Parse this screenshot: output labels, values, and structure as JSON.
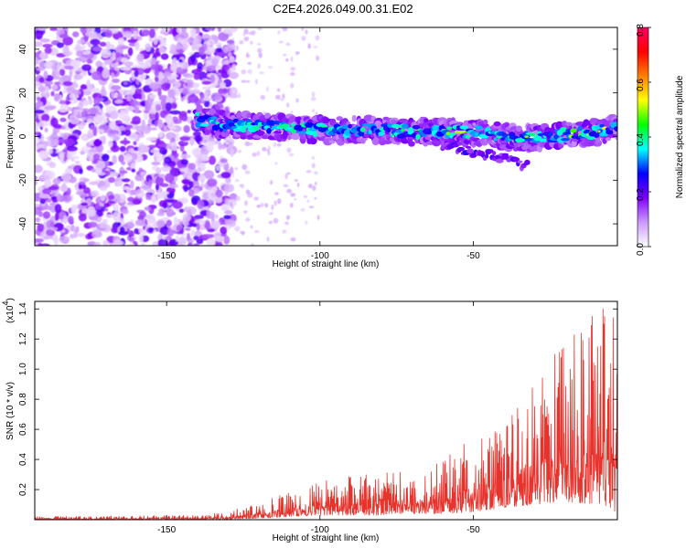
{
  "title": "C2E4.2026.049.00.31.E02",
  "chart_data": [
    {
      "type": "heatmap",
      "xlabel": "Height of straight line (km)",
      "ylabel": "Frequency (Hz)",
      "xlim": [
        -193,
        -3
      ],
      "ylim": [
        -50,
        50
      ],
      "xticks": [
        -150,
        -100,
        -50
      ],
      "yticks": [
        -40,
        -20,
        0,
        20,
        40
      ],
      "colorbar": {
        "label": "Normalized spectral amplitude",
        "range": [
          0,
          0.8
        ],
        "ticks": [
          0.0,
          0.2,
          0.4,
          0.6,
          0.8
        ],
        "colors": [
          "#ffffff",
          "#cc99ff",
          "#8000ff",
          "#0000ff",
          "#00ffff",
          "#00ff00",
          "#ffff00",
          "#ff8000",
          "#ff0000",
          "#ff0066"
        ]
      },
      "noise_region_x": [
        -193,
        -130
      ],
      "ridge": {
        "x": [
          -140,
          -130,
          -120,
          -110,
          -100,
          -90,
          -80,
          -70,
          -60,
          -50,
          -40,
          -30,
          -20,
          -10,
          -3
        ],
        "freq": [
          8,
          5,
          5,
          4,
          3,
          3,
          3,
          2,
          2,
          2,
          0,
          -1,
          1,
          2,
          4
        ],
        "peak_amplitude": [
          0.45,
          0.5,
          0.5,
          0.55,
          0.55,
          0.5,
          0.5,
          0.5,
          0.6,
          0.65,
          0.55,
          0.65,
          0.75,
          0.7,
          0.6
        ]
      },
      "tail": {
        "x": [
          -60,
          -40,
          -32
        ],
        "freq": [
          -4,
          -10,
          -14
        ]
      }
    },
    {
      "type": "line",
      "xlabel": "Height of straight line (km)",
      "ylabel": "SNR (10 * v/v)",
      "y_multiplier": "(x10",
      "y_multiplier_exponent": "4",
      "xlim": [
        -193,
        -3
      ],
      "ylim": [
        0,
        1.45
      ],
      "xticks": [
        -150,
        -100,
        -50
      ],
      "yticks": [
        0.2,
        0.4,
        0.6,
        0.8,
        1.0,
        1.2,
        1.4
      ],
      "color": "#e8322c",
      "envelope": {
        "x": [
          -193,
          -140,
          -130,
          -120,
          -110,
          -100,
          -90,
          -80,
          -70,
          -60,
          -50,
          -40,
          -30,
          -20,
          -10,
          -3
        ],
        "max": [
          0.02,
          0.03,
          0.05,
          0.12,
          0.18,
          0.25,
          0.3,
          0.32,
          0.34,
          0.4,
          0.55,
          0.65,
          0.95,
          1.2,
          1.45,
          1.4
        ],
        "min": [
          0.0,
          0.0,
          0.0,
          0.01,
          0.02,
          0.03,
          0.03,
          0.03,
          0.04,
          0.04,
          0.05,
          0.08,
          0.1,
          0.12,
          0.1,
          0.05
        ]
      }
    }
  ]
}
